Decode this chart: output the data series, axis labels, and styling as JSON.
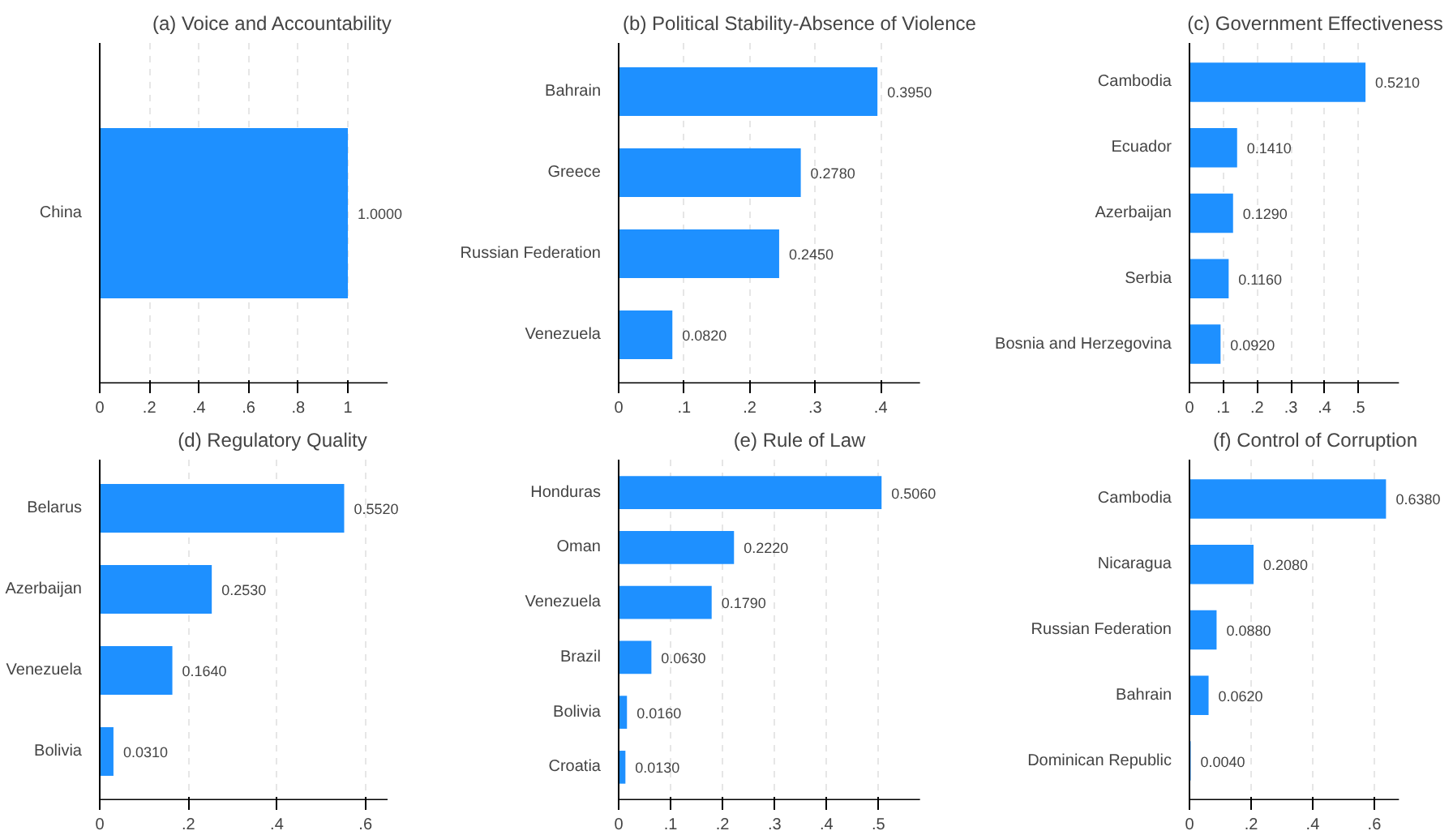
{
  "chart_data": [
    {
      "type": "bar",
      "orientation": "horizontal",
      "title": "(a) Voice and Accountability",
      "categories": [
        "China"
      ],
      "values": [
        1.0
      ],
      "value_labels": [
        "1.0000"
      ],
      "color": "#1e90ff",
      "xlim": [
        0,
        1.16
      ],
      "xticks": [
        0,
        {
          "value": 0.2,
          "label": ".2"
        },
        {
          "value": 0.4,
          "label": ".4"
        },
        {
          "value": 0.6,
          "label": ".6"
        },
        {
          "value": 0.8,
          "label": ".8"
        },
        1
      ],
      "grid": "x"
    },
    {
      "type": "bar",
      "orientation": "horizontal",
      "title": "(b) Political Stability-Absence of Violence",
      "categories": [
        "Bahrain",
        "Greece",
        "Russian Federation",
        "Venezuela"
      ],
      "values": [
        0.395,
        0.278,
        0.245,
        0.082
      ],
      "value_labels": [
        "0.3950",
        "0.2780",
        "0.2450",
        "0.0820"
      ],
      "color": "#1e90ff",
      "xlim": [
        0,
        0.46
      ],
      "xticks": [
        0,
        {
          "value": 0.1,
          "label": ".1"
        },
        {
          "value": 0.2,
          "label": ".2"
        },
        {
          "value": 0.3,
          "label": ".3"
        },
        {
          "value": 0.4,
          "label": ".4"
        }
      ],
      "grid": "x"
    },
    {
      "type": "bar",
      "orientation": "horizontal",
      "title": "(c) Government Effectiveness",
      "categories": [
        "Cambodia",
        "Ecuador",
        "Azerbaijan",
        "Serbia",
        "Bosnia and Herzegovina"
      ],
      "values": [
        0.521,
        0.141,
        0.129,
        0.116,
        0.092
      ],
      "value_labels": [
        "0.5210",
        "0.1410",
        "0.1290",
        "0.1160",
        "0.0920"
      ],
      "color": "#1e90ff",
      "xlim": [
        0,
        0.62
      ],
      "xticks": [
        0,
        {
          "value": 0.1,
          "label": ".1"
        },
        {
          "value": 0.2,
          "label": ".2"
        },
        {
          "value": 0.3,
          "label": ".3"
        },
        {
          "value": 0.4,
          "label": ".4"
        },
        {
          "value": 0.5,
          "label": ".5"
        }
      ],
      "grid": "x"
    },
    {
      "type": "bar",
      "orientation": "horizontal",
      "title": "(d) Regulatory Quality",
      "categories": [
        "Belarus",
        "Azerbaijan",
        "Venezuela",
        "Bolivia"
      ],
      "values": [
        0.552,
        0.253,
        0.164,
        0.031
      ],
      "value_labels": [
        "0.5520",
        "0.2530",
        "0.1640",
        "0.0310"
      ],
      "color": "#1e90ff",
      "xlim": [
        0,
        0.65
      ],
      "xticks": [
        0,
        {
          "value": 0.2,
          "label": ".2"
        },
        {
          "value": 0.4,
          "label": ".4"
        },
        {
          "value": 0.6,
          "label": ".6"
        }
      ],
      "grid": "x"
    },
    {
      "type": "bar",
      "orientation": "horizontal",
      "title": "(e) Rule of Law",
      "categories": [
        "Honduras",
        "Oman",
        "Venezuela",
        "Brazil",
        "Bolivia",
        "Croatia"
      ],
      "values": [
        0.506,
        0.222,
        0.179,
        0.063,
        0.016,
        0.013
      ],
      "value_labels": [
        "0.5060",
        "0.2220",
        "0.1790",
        "0.0630",
        "0.0160",
        "0.0130"
      ],
      "color": "#1e90ff",
      "xlim": [
        0,
        0.58
      ],
      "xticks": [
        0,
        {
          "value": 0.1,
          "label": ".1"
        },
        {
          "value": 0.2,
          "label": ".2"
        },
        {
          "value": 0.3,
          "label": ".3"
        },
        {
          "value": 0.4,
          "label": ".4"
        },
        {
          "value": 0.5,
          "label": ".5"
        }
      ],
      "grid": "x"
    },
    {
      "type": "bar",
      "orientation": "horizontal",
      "title": "(f) Control of Corruption",
      "categories": [
        "Cambodia",
        "Nicaragua",
        "Russian Federation",
        "Bahrain",
        "Dominican Republic"
      ],
      "values": [
        0.638,
        0.208,
        0.088,
        0.062,
        0.004
      ],
      "value_labels": [
        "0.6380",
        "0.2080",
        "0.0880",
        "0.0620",
        "0.0040"
      ],
      "color": "#1e90ff",
      "xlim": [
        0,
        0.68
      ],
      "xticks": [
        0,
        {
          "value": 0.2,
          "label": ".2"
        },
        {
          "value": 0.4,
          "label": ".4"
        },
        {
          "value": 0.6,
          "label": ".6"
        }
      ],
      "grid": "x"
    }
  ]
}
